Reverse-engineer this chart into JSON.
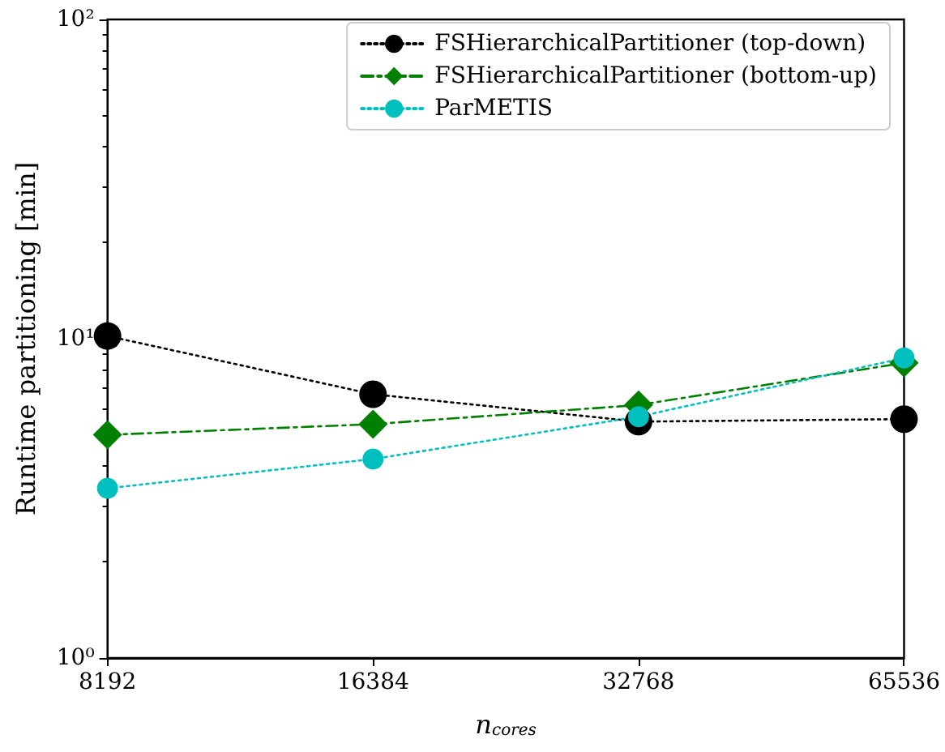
{
  "chart_data": {
    "type": "line",
    "xlabel": "n$_{cores}$",
    "ylabel": "Runtime partitioning [min]",
    "categories": [
      "8192",
      "16384",
      "32768",
      "65536"
    ],
    "log": "y",
    "ylim": [
      1,
      100
    ],
    "yticks": [
      {
        "value": 1,
        "label": "10⁰"
      },
      {
        "value": 10,
        "label": "10¹"
      },
      {
        "value": 100,
        "label": "10²"
      }
    ],
    "grid": false,
    "legend": "top right",
    "series": [
      {
        "name": "FSHierarchicalPartitioner (top-down)",
        "color": "#000000",
        "marker": "circle",
        "line_style": "dotted",
        "values": [
          10.2,
          6.7,
          5.5,
          5.6
        ]
      },
      {
        "name": "FSHierarchicalPartitioner (bottom-up)",
        "color": "#008000",
        "marker": "diamond",
        "line_style": "dashed",
        "values": [
          5.0,
          5.4,
          6.2,
          8.4
        ]
      },
      {
        "name": "ParMETIS",
        "color": "#00bfbf",
        "marker": "circle",
        "line_style": "dotted",
        "values": [
          3.4,
          4.2,
          5.7,
          8.7
        ]
      }
    ]
  }
}
